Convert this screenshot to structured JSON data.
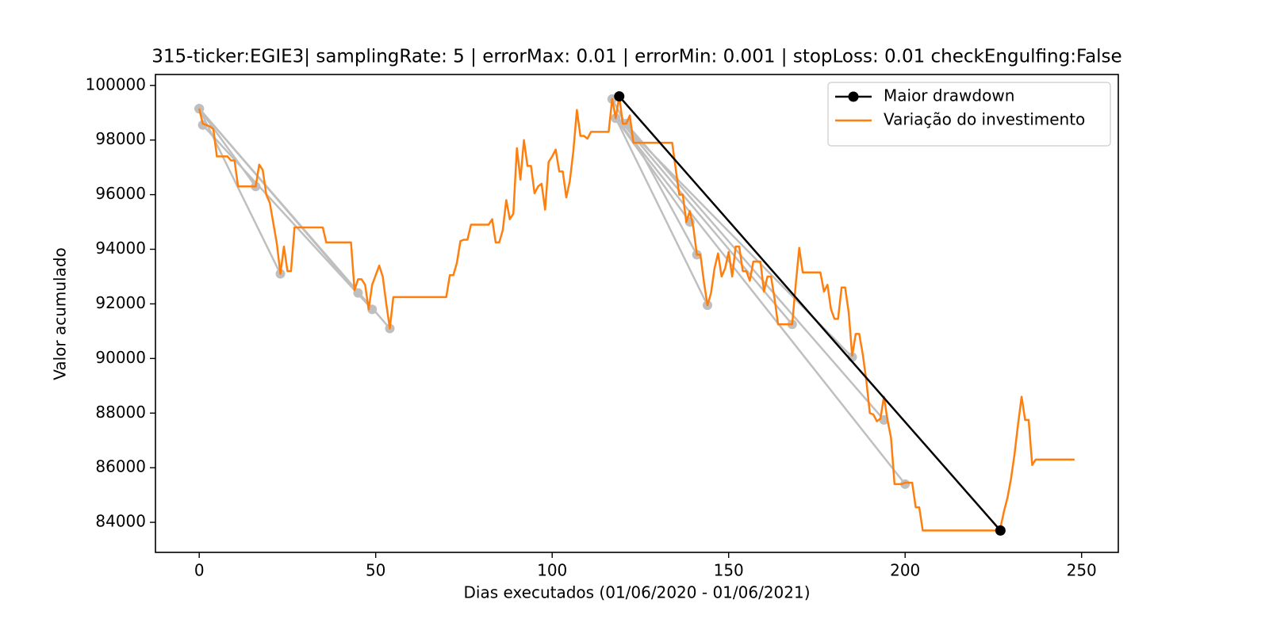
{
  "chart_data": {
    "type": "line",
    "title": "315-ticker:EGIE3| samplingRate: 5 | errorMax: 0.01 | errorMin: 0.001 | stopLoss: 0.01 checkEngulfing:False",
    "x_label": "Dias executados (01/06/2020 - 01/06/2021)",
    "y_label": "Valor acumulado",
    "xlim": [
      -12.4,
      260.4
    ],
    "ylim": [
      82900,
      100400
    ],
    "xticks": [
      0,
      50,
      100,
      150,
      200,
      250
    ],
    "yticks": [
      84000,
      86000,
      88000,
      90000,
      92000,
      94000,
      96000,
      98000,
      100000
    ],
    "legend": "upper right",
    "drawdown_color": "#bfbfbf",
    "drawdowns": [
      {
        "x": [
          0,
          16
        ],
        "values": [
          99150,
          96300
        ]
      },
      {
        "x": [
          0,
          23
        ],
        "values": [
          99150,
          93100
        ]
      },
      {
        "x": [
          0,
          45
        ],
        "values": [
          99150,
          92400
        ]
      },
      {
        "x": [
          1,
          49
        ],
        "values": [
          98550,
          91800
        ]
      },
      {
        "x": [
          0,
          54
        ],
        "values": [
          99150,
          91100
        ]
      },
      {
        "x": [
          117,
          141
        ],
        "values": [
          99500,
          93800
        ]
      },
      {
        "x": [
          118,
          139
        ],
        "values": [
          98800,
          95000
        ]
      },
      {
        "x": [
          118,
          144
        ],
        "values": [
          98800,
          91950
        ]
      },
      {
        "x": [
          120,
          168
        ],
        "values": [
          98600,
          91250
        ]
      },
      {
        "x": [
          120,
          185
        ],
        "values": [
          98600,
          90050
        ]
      },
      {
        "x": [
          121,
          194
        ],
        "values": [
          98600,
          87750
        ]
      },
      {
        "x": [
          118,
          200
        ],
        "values": [
          98800,
          85400
        ]
      }
    ],
    "series": [
      {
        "name": "Maior drawdown",
        "color": "#000000",
        "marker": "o",
        "x": [
          119,
          227
        ],
        "values": [
          99600,
          83700
        ]
      },
      {
        "name": "Variação do investimento",
        "color": "#ff7f0e",
        "x": [
          0,
          1,
          3,
          4,
          5,
          8,
          9,
          10,
          11,
          16,
          17,
          18,
          19,
          20,
          22,
          23,
          24,
          25,
          26,
          27,
          35,
          36,
          43,
          44,
          45,
          46,
          47,
          48,
          49,
          51,
          52,
          53,
          54,
          55,
          70,
          71,
          72,
          73,
          74,
          75,
          76,
          77,
          82,
          83,
          84,
          85,
          86,
          87,
          88,
          89,
          90,
          91,
          92,
          93,
          94,
          95,
          96,
          97,
          98,
          99,
          100,
          101,
          102,
          103,
          104,
          105,
          106,
          107,
          108,
          109,
          110,
          111,
          116,
          117,
          118,
          119,
          120,
          121,
          122,
          123,
          134,
          136,
          137,
          138,
          139,
          140,
          141,
          142,
          143,
          144,
          145,
          146,
          147,
          148,
          149,
          150,
          151,
          152,
          153,
          154,
          155,
          156,
          157,
          159,
          160,
          161,
          162,
          163,
          164,
          168,
          169,
          170,
          171,
          176,
          177,
          178,
          179,
          180,
          181,
          182,
          183,
          184,
          185,
          186,
          187,
          188,
          189,
          190,
          191,
          192,
          193,
          194,
          195,
          196,
          197,
          199,
          200,
          202,
          203,
          204,
          205,
          226,
          227,
          228,
          229,
          230,
          231,
          232,
          233,
          234,
          235,
          236,
          237,
          248
        ],
        "values": [
          99150,
          98600,
          98500,
          98400,
          97400,
          97400,
          97250,
          97250,
          96300,
          96300,
          97100,
          96900,
          96000,
          95700,
          94200,
          93100,
          94100,
          93200,
          93200,
          94800,
          94800,
          94250,
          94250,
          92500,
          92900,
          92900,
          92700,
          91800,
          92700,
          93400,
          93000,
          92000,
          91100,
          92250,
          92250,
          93050,
          93050,
          93500,
          94300,
          94350,
          94350,
          94900,
          94900,
          95100,
          94250,
          94250,
          94700,
          95800,
          95100,
          95300,
          97700,
          96550,
          98000,
          97050,
          97050,
          96050,
          96300,
          96400,
          95450,
          97200,
          97400,
          97650,
          96850,
          96850,
          95900,
          96500,
          97600,
          99100,
          98150,
          98150,
          98050,
          98300,
          98300,
          99500,
          98800,
          99600,
          98600,
          98600,
          98900,
          97900,
          97900,
          96000,
          96000,
          95000,
          95400,
          94800,
          93800,
          93800,
          92800,
          91950,
          92400,
          93300,
          93850,
          93000,
          93300,
          93900,
          93000,
          94100,
          94100,
          93200,
          93200,
          92850,
          93550,
          93550,
          92450,
          93000,
          93000,
          92200,
          91250,
          91250,
          92700,
          94050,
          93150,
          93150,
          92450,
          92700,
          91800,
          91450,
          91450,
          92600,
          92600,
          91700,
          90100,
          90900,
          90900,
          90150,
          89200,
          88000,
          87950,
          87700,
          87800,
          88600,
          87750,
          87100,
          85400,
          85400,
          85450,
          85450,
          84550,
          84550,
          83700,
          83700,
          83800,
          84400,
          84900,
          85600,
          86500,
          87600,
          88600,
          87750,
          87750,
          86100,
          86300,
          86300
        ]
      }
    ]
  }
}
